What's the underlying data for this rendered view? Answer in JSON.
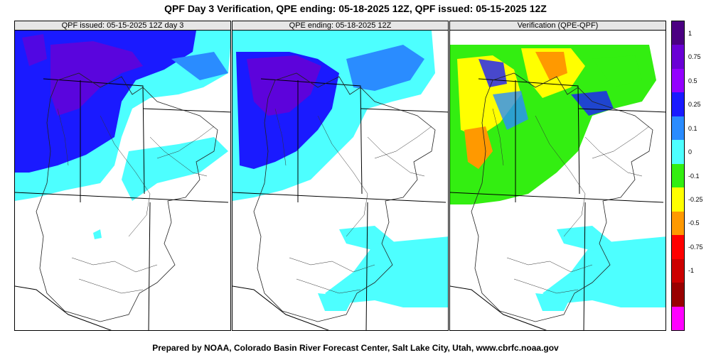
{
  "title": "QPF Day 3 Verification, QPE ending: 05-18-2025 12Z, QPF issued: 05-15-2025 12Z",
  "panels": [
    {
      "id": "qpf",
      "label": "QPF issued: 05-15-2025 12Z day 3"
    },
    {
      "id": "qpe",
      "label": "QPE ending: 05-18-2025 12Z"
    },
    {
      "id": "verif",
      "label": "Verification (QPE-QPF)"
    }
  ],
  "legend": {
    "colors": [
      "#4b0082",
      "#6a00d5",
      "#9400ff",
      "#1a1aff",
      "#2a8cff",
      "#4dffff",
      "#33ee11",
      "#ffff00",
      "#ff9900",
      "#ff0000",
      "#cc0000",
      "#990000",
      "#ff00ff"
    ],
    "labels": [
      "1",
      "0.75",
      "0.5",
      "0.25",
      "0.1",
      "0",
      "-0.1",
      "-0.25",
      "-0.5",
      "-0.75",
      "-1"
    ]
  },
  "footer": "Prepared by NOAA, Colorado Basin River Forecast Center, Salt Lake City, Utah, www.cbrfc.noaa.gov"
}
